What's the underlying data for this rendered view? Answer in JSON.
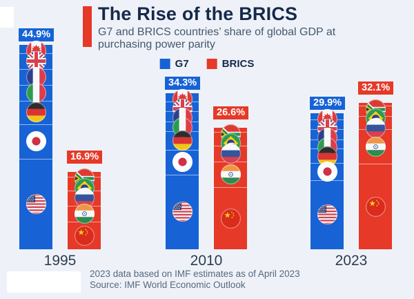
{
  "header": {
    "title": "The Rise of the BRICS",
    "subtitle": "G7 and BRICS countries’ share of global GDP at purchasing power parity"
  },
  "legend": {
    "items": [
      {
        "label": "G7",
        "color": "#1763d6"
      },
      {
        "label": "BRICS",
        "color": "#e63928"
      }
    ]
  },
  "footer": {
    "note": "2023 data based on IMF estimates as of April 2023",
    "source": "Source: IMF World Economic Outlook"
  },
  "colors": {
    "background": "#eef2f8",
    "g7": "#1763d6",
    "brics": "#e63928",
    "title_text": "#16294a",
    "subtitle_text": "#44576d",
    "axis_text": "#2e3c4f",
    "footer_text": "#55687e"
  },
  "chart_data": {
    "type": "bar",
    "subtype": "grouped-stacked-percentage",
    "title": "The Rise of the BRICS",
    "unit": "% share of global GDP at purchasing power parity",
    "categories": [
      "1995",
      "2010",
      "2023"
    ],
    "series": [
      {
        "name": "G7",
        "color": "#1763d6",
        "values": [
          44.9,
          34.3,
          29.9
        ]
      },
      {
        "name": "BRICS",
        "color": "#e63928",
        "values": [
          16.9,
          26.6,
          32.1
        ]
      }
    ],
    "legend_position": "top-center",
    "grid": false,
    "groups": [
      {
        "year": "1995",
        "bars": [
          {
            "series_id": "g7",
            "name": "G7",
            "total": 44.9,
            "label": "44.9%",
            "color": "#1763d6",
            "segments": [
              {
                "country": "Canada",
                "value": 1.9,
                "flag": "ca",
                "icon": "canada-flag-icon"
              },
              {
                "country": "United Kingdom",
                "value": 3.4,
                "flag": "gb",
                "icon": "uk-flag-icon"
              },
              {
                "country": "France",
                "value": 3.6,
                "flag": "fr",
                "icon": "france-flag-icon"
              },
              {
                "country": "Italy",
                "value": 3.4,
                "flag": "it",
                "icon": "italy-flag-icon"
              },
              {
                "country": "Germany",
                "value": 5.1,
                "flag": "de",
                "icon": "germany-flag-icon"
              },
              {
                "country": "Japan",
                "value": 7.7,
                "flag": "jp",
                "icon": "japan-flag-icon"
              },
              {
                "country": "United States",
                "value": 19.8,
                "flag": "us",
                "icon": "usa-flag-icon"
              }
            ]
          },
          {
            "series_id": "brics",
            "name": "BRICS",
            "total": 16.9,
            "label": "16.9%",
            "color": "#e63928",
            "segments": [
              {
                "country": "South Africa",
                "value": 1.0,
                "flag": "za",
                "icon": "south-africa-flag-icon"
              },
              {
                "country": "Brazil",
                "value": 3.0,
                "flag": "br",
                "icon": "brazil-flag-icon"
              },
              {
                "country": "Russia",
                "value": 3.3,
                "flag": "ru",
                "icon": "russia-flag-icon"
              },
              {
                "country": "India",
                "value": 3.6,
                "flag": "in",
                "icon": "india-flag-icon"
              },
              {
                "country": "China",
                "value": 6.0,
                "flag": "cn",
                "icon": "china-flag-icon"
              }
            ]
          }
        ]
      },
      {
        "year": "2010",
        "bars": [
          {
            "series_id": "g7",
            "name": "G7",
            "total": 34.3,
            "label": "34.3%",
            "color": "#1763d6",
            "segments": [
              {
                "country": "Canada",
                "value": 1.8,
                "flag": "ca",
                "icon": "canada-flag-icon"
              },
              {
                "country": "United Kingdom",
                "value": 2.2,
                "flag": "gb",
                "icon": "uk-flag-icon"
              },
              {
                "country": "France",
                "value": 2.3,
                "flag": "fr",
                "icon": "france-flag-icon"
              },
              {
                "country": "Italy",
                "value": 2.1,
                "flag": "it",
                "icon": "italy-flag-icon"
              },
              {
                "country": "Germany",
                "value": 4.0,
                "flag": "de",
                "icon": "germany-flag-icon"
              },
              {
                "country": "Japan",
                "value": 5.5,
                "flag": "jp",
                "icon": "japan-flag-icon"
              },
              {
                "country": "United States",
                "value": 16.4,
                "flag": "us",
                "icon": "usa-flag-icon"
              }
            ]
          },
          {
            "series_id": "brics",
            "name": "BRICS",
            "total": 26.6,
            "label": "26.6%",
            "color": "#e63928",
            "segments": [
              {
                "country": "South Africa",
                "value": 0.9,
                "flag": "za",
                "icon": "south-africa-flag-icon"
              },
              {
                "country": "Brazil",
                "value": 3.0,
                "flag": "br",
                "icon": "brazil-flag-icon"
              },
              {
                "country": "Russia",
                "value": 3.5,
                "flag": "ru",
                "icon": "russia-flag-icon"
              },
              {
                "country": "India",
                "value": 5.6,
                "flag": "in",
                "icon": "india-flag-icon"
              },
              {
                "country": "China",
                "value": 13.6,
                "flag": "cn",
                "icon": "china-flag-icon"
              }
            ]
          }
        ]
      },
      {
        "year": "2023",
        "bars": [
          {
            "series_id": "g7",
            "name": "G7",
            "total": 29.9,
            "label": "29.9%",
            "color": "#1763d6",
            "segments": [
              {
                "country": "Canada",
                "value": 1.4,
                "flag": "ca",
                "icon": "canada-flag-icon"
              },
              {
                "country": "United Kingdom",
                "value": 2.2,
                "flag": "gb",
                "icon": "uk-flag-icon"
              },
              {
                "country": "France",
                "value": 2.2,
                "flag": "fr",
                "icon": "france-flag-icon"
              },
              {
                "country": "Italy",
                "value": 1.9,
                "flag": "it",
                "icon": "italy-flag-icon"
              },
              {
                "country": "Germany",
                "value": 3.2,
                "flag": "de",
                "icon": "germany-flag-icon"
              },
              {
                "country": "Japan",
                "value": 3.8,
                "flag": "jp",
                "icon": "japan-flag-icon"
              },
              {
                "country": "United States",
                "value": 15.2,
                "flag": "us",
                "icon": "usa-flag-icon"
              }
            ]
          },
          {
            "series_id": "brics",
            "name": "BRICS",
            "total": 32.1,
            "label": "32.1%",
            "color": "#e63928",
            "segments": [
              {
                "country": "South Africa",
                "value": 0.6,
                "flag": "za",
                "icon": "south-africa-flag-icon"
              },
              {
                "country": "Brazil",
                "value": 2.3,
                "flag": "br",
                "icon": "brazil-flag-icon"
              },
              {
                "country": "Russia",
                "value": 2.9,
                "flag": "ru",
                "icon": "russia-flag-icon"
              },
              {
                "country": "India",
                "value": 7.5,
                "flag": "in",
                "icon": "india-flag-icon"
              },
              {
                "country": "China",
                "value": 18.8,
                "flag": "cn",
                "icon": "china-flag-icon"
              }
            ]
          }
        ]
      }
    ]
  }
}
